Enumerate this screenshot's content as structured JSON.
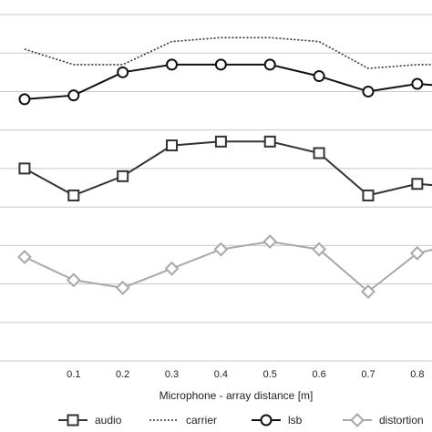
{
  "chart_data": {
    "type": "line",
    "xlabel": "Microphone - array distance [m]",
    "ylabel": "",
    "title": "",
    "x": [
      0.0,
      0.1,
      0.2,
      0.3,
      0.4,
      0.5,
      0.6,
      0.7,
      0.8,
      0.9
    ],
    "x_tick_labels": [
      "0.1",
      "0.2",
      "0.3",
      "0.4",
      "0.5",
      "0.6",
      "0.7",
      "0.8"
    ],
    "x_tick_values": [
      0.1,
      0.2,
      0.3,
      0.4,
      0.5,
      0.6,
      0.7,
      0.8
    ],
    "xlim": [
      -0.05,
      0.83
    ],
    "ylim": [
      0,
      9
    ],
    "grid": true,
    "legend_position": "bottom",
    "series": [
      {
        "name": "audio",
        "marker": "square",
        "line": "solid",
        "color": "#333333",
        "values": [
          5.0,
          4.3,
          4.8,
          5.6,
          5.7,
          5.7,
          5.4,
          4.3,
          4.6,
          4.5
        ]
      },
      {
        "name": "carrier",
        "marker": "none",
        "line": "dotted",
        "color": "#333333",
        "values": [
          8.1,
          7.7,
          7.7,
          8.3,
          8.4,
          8.4,
          8.3,
          7.6,
          7.7,
          7.7
        ]
      },
      {
        "name": "lsb",
        "marker": "circle",
        "line": "solid",
        "color": "#111111",
        "values": [
          6.8,
          6.9,
          7.5,
          7.7,
          7.7,
          7.7,
          7.4,
          7.0,
          7.2,
          7.1
        ]
      },
      {
        "name": "distortion",
        "marker": "diamond",
        "line": "solid",
        "color": "#a8a8a8",
        "values": [
          2.7,
          2.1,
          1.9,
          2.4,
          2.9,
          3.1,
          2.9,
          1.8,
          2.8,
          3.1
        ]
      }
    ]
  }
}
